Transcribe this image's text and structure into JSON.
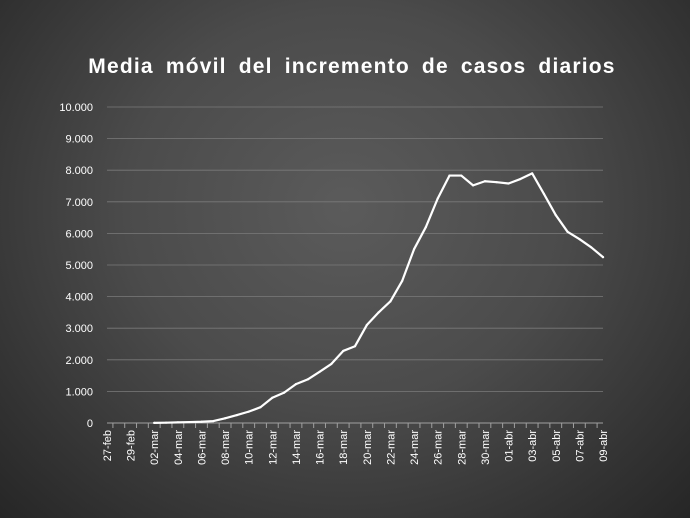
{
  "chart_data": {
    "type": "line",
    "title": "Media móvil del incremento de casos diarios",
    "xlabel": "",
    "ylabel": "",
    "ylim": [
      0,
      10000
    ],
    "y_ticks": [
      "0",
      "1.000",
      "2.000",
      "3.000",
      "4.000",
      "5.000",
      "6.000",
      "7.000",
      "8.000",
      "9.000",
      "10.000"
    ],
    "x_tick_labels": [
      "27-feb",
      "29-feb",
      "02-mar",
      "04-mar",
      "06-mar",
      "08-mar",
      "10-mar",
      "12-mar",
      "14-mar",
      "16-mar",
      "18-mar",
      "20-mar",
      "22-mar",
      "24-mar",
      "26-mar",
      "28-mar",
      "30-mar",
      "01-abr",
      "03-abr",
      "05-abr",
      "07-abr",
      "09-abr"
    ],
    "grid": true,
    "legend": "none",
    "colors": {
      "line": "#ffffff",
      "grid": "#7a7a7a",
      "axis": "#a0a0a0"
    },
    "x": [
      "27-feb",
      "28-feb",
      "29-feb",
      "01-mar",
      "02-mar",
      "03-mar",
      "04-mar",
      "05-mar",
      "06-mar",
      "07-mar",
      "08-mar",
      "09-mar",
      "10-mar",
      "11-mar",
      "12-mar",
      "13-mar",
      "14-mar",
      "15-mar",
      "16-mar",
      "17-mar",
      "18-mar",
      "19-mar",
      "20-mar",
      "21-mar",
      "22-mar",
      "23-mar",
      "24-mar",
      "25-mar",
      "26-mar",
      "27-mar",
      "28-mar",
      "29-mar",
      "30-mar",
      "31-mar",
      "01-abr",
      "02-abr",
      "03-abr",
      "04-abr",
      "05-abr",
      "06-abr",
      "07-abr",
      "08-abr",
      "09-abr"
    ],
    "series": [
      {
        "values": [
          null,
          null,
          null,
          null,
          5,
          10,
          20,
          30,
          40,
          60,
          150,
          250,
          360,
          500,
          800,
          960,
          1230,
          1380,
          1620,
          1870,
          2280,
          2430,
          3100,
          3500,
          3850,
          4500,
          5500,
          6200,
          7100,
          7830,
          7830,
          7520,
          7650,
          7620,
          7580,
          7720,
          7900,
          7250,
          6580,
          6050,
          5820,
          5560,
          5250
        ]
      }
    ]
  }
}
